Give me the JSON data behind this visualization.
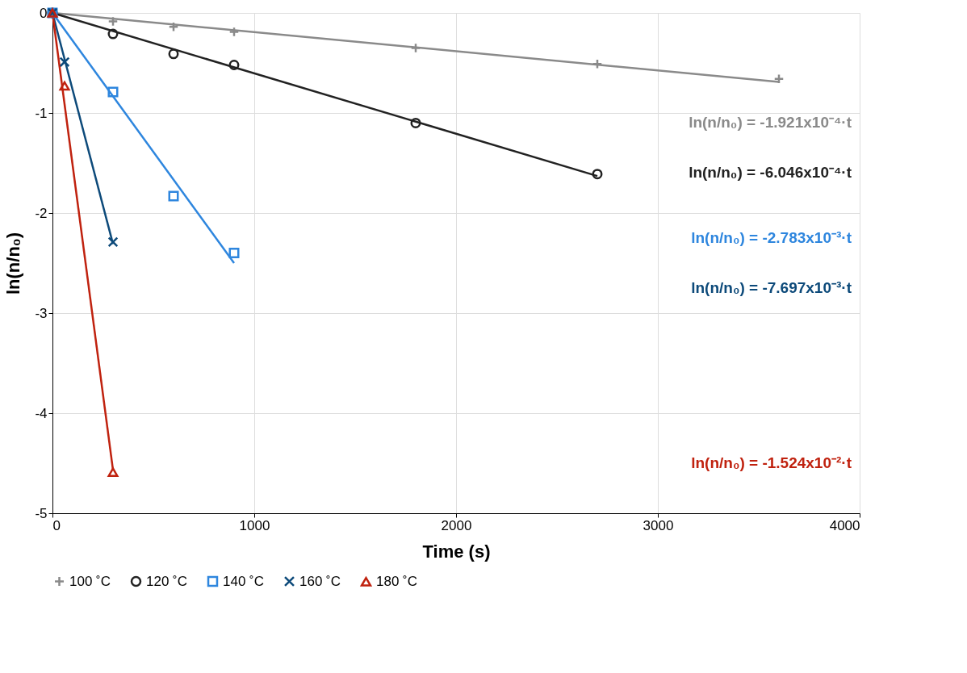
{
  "chart_data": {
    "type": "scatter",
    "xlabel": "Time (s)",
    "ylabel": "ln(n/n₀)",
    "xlim": [
      0,
      4000
    ],
    "xticks": [
      0,
      1000,
      2000,
      3000,
      4000
    ],
    "ylim": [
      -5,
      0
    ],
    "yticks": [
      -5,
      -4,
      -3,
      -2,
      -1,
      0
    ],
    "grid": true,
    "legend": "bottom",
    "series": [
      {
        "name": "100 ˚C",
        "color": "#8a8a8a",
        "marker": "plus",
        "x": [
          0,
          300,
          600,
          900,
          1800,
          2700,
          3600
        ],
        "values": [
          0,
          -0.085,
          -0.14,
          -0.19,
          -0.35,
          -0.51,
          -0.66
        ]
      },
      {
        "name": "120 ˚C",
        "color": "#222222",
        "marker": "circle",
        "x": [
          0,
          300,
          600,
          900,
          1800,
          2700
        ],
        "values": [
          0,
          -0.21,
          -0.41,
          -0.52,
          -1.1,
          -1.61
        ]
      },
      {
        "name": "140 ˚C",
        "color": "#2e86de",
        "marker": "square",
        "x": [
          0,
          300,
          600,
          900
        ],
        "values": [
          0,
          -0.79,
          -1.83,
          -2.4
        ]
      },
      {
        "name": "160 ˚C",
        "color": "#0d4a7a",
        "marker": "cross",
        "x": [
          0,
          60,
          300
        ],
        "values": [
          0,
          -0.49,
          -2.29
        ]
      },
      {
        "name": "180 ˚C",
        "color": "#c0220f",
        "marker": "triangle",
        "x": [
          0,
          60,
          300
        ],
        "values": [
          0,
          -0.73,
          -4.59
        ]
      },
      {
        "type": "line",
        "color": "#8a8a8a",
        "x": [
          0,
          3600
        ],
        "values": [
          0,
          -0.69
        ]
      },
      {
        "type": "line",
        "color": "#222222",
        "x": [
          0,
          2700
        ],
        "values": [
          0,
          -1.63
        ]
      },
      {
        "type": "line",
        "color": "#2e86de",
        "x": [
          0,
          900
        ],
        "values": [
          0,
          -2.5
        ]
      },
      {
        "type": "line",
        "color": "#0d4a7a",
        "x": [
          0,
          300
        ],
        "values": [
          0,
          -2.31
        ]
      },
      {
        "type": "line",
        "color": "#c0220f",
        "x": [
          0,
          300
        ],
        "values": [
          0,
          -4.57
        ]
      }
    ],
    "annotations": [
      "ln(n/n₀) = -1.921x10⁻⁴·t",
      "ln(n/n₀) = -6.046x10⁻⁴·t",
      "ln(n/n₀) = -2.783x10⁻³·t",
      "ln(n/n₀) = -7.697x10⁻³·t",
      "ln(n/n₀) = -1.524x10⁻²·t"
    ]
  }
}
